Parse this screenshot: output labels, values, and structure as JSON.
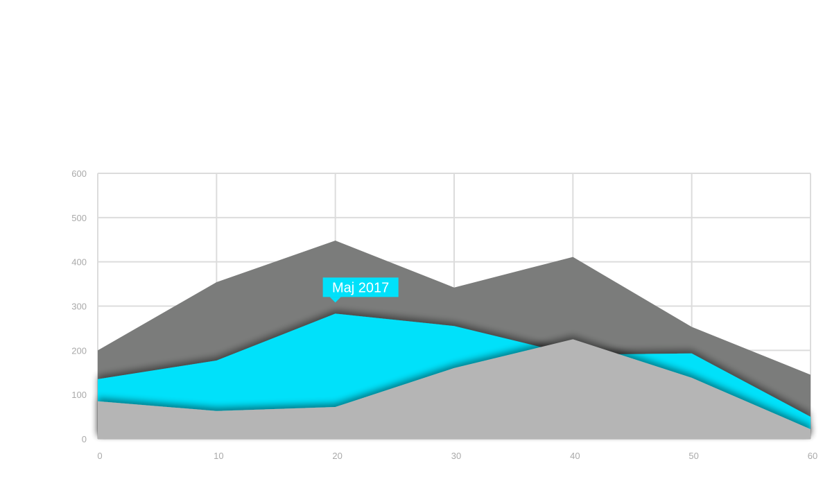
{
  "chart_data": {
    "type": "area",
    "x": [
      0,
      10,
      20,
      30,
      40,
      50,
      60
    ],
    "xticks": [
      "0",
      "10",
      "20",
      "30",
      "40",
      "50",
      "60"
    ],
    "yticks": [
      "0",
      "100",
      "200",
      "300",
      "400",
      "500",
      "600"
    ],
    "xlim": [
      0,
      60
    ],
    "ylim": [
      0,
      600
    ],
    "grid": true,
    "series": [
      {
        "color": "#7b7c7b",
        "values": [
          200,
          354,
          448,
          342,
          411,
          253,
          145
        ]
      },
      {
        "color": "#00e1fa",
        "values": [
          135,
          177,
          283,
          255,
          190,
          193,
          50
        ]
      },
      {
        "color": "#b5b5b5",
        "values": [
          85,
          63,
          72,
          160,
          225,
          138,
          22
        ]
      }
    ],
    "annotations": [
      {
        "text": "Maj 2017",
        "x": 20,
        "y": 283,
        "background": "#00e1fa"
      }
    ]
  }
}
